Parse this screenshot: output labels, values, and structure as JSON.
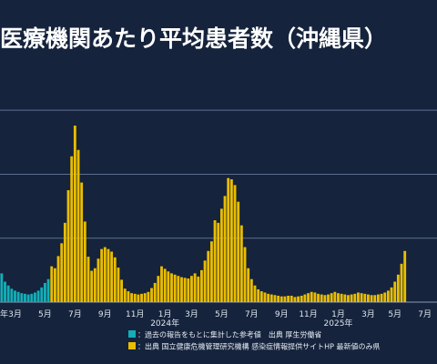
{
  "title": "医療機関あたり平均患者数（沖縄県）",
  "colors": {
    "background": "#15233c",
    "reference_series": "#13aeb8",
    "official_series": "#e9bd00",
    "grid": "#5d6f90"
  },
  "chart_data": {
    "type": "bar",
    "title": "医療機関あたり平均患者数（沖縄県）",
    "xlabel": "",
    "ylabel": "",
    "grid": true,
    "legend_position": "bottom",
    "ylim": [
      0,
      36
    ],
    "yticks": [
      10,
      20,
      30
    ],
    "unit": "weekly",
    "x_tick_labels": [
      {
        "label": "年",
        "index": 0
      },
      {
        "label": "3月",
        "index": 4
      },
      {
        "label": "5月",
        "index": 13
      },
      {
        "label": "7月",
        "index": 22
      },
      {
        "label": "9月",
        "index": 31
      },
      {
        "label": "11月",
        "index": 40
      },
      {
        "label": "1月",
        "index": 49
      },
      {
        "label": "3月",
        "index": 57
      },
      {
        "label": "5月",
        "index": 66
      },
      {
        "label": "7月",
        "index": 75
      },
      {
        "label": "9月",
        "index": 84
      },
      {
        "label": "11月",
        "index": 92
      },
      {
        "label": "1月",
        "index": 101
      },
      {
        "label": "3月",
        "index": 110
      },
      {
        "label": "5月",
        "index": 118
      },
      {
        "label": "7月",
        "index": 127
      }
    ],
    "year_labels": [
      {
        "label": "2024年",
        "index": 49
      },
      {
        "label": "2025年",
        "index": 101
      }
    ],
    "series": [
      {
        "name": "：過去の報告をもとに集計した参考値　出典 厚生労働省",
        "color": "#13aeb8",
        "start": 0,
        "values": [
          4.5,
          3.2,
          2.6,
          2.1,
          1.8,
          1.6,
          1.4,
          1.3,
          1.2,
          1.3,
          1.5,
          1.8,
          2.3,
          3.0,
          3.6
        ]
      },
      {
        "name": "：出典 国立健康危機管理研究機構 感染症情報提供サイトHP 最新値のみ県",
        "color": "#e9bd00",
        "start": 15,
        "values": [
          5.6,
          5.3,
          7.2,
          9.2,
          12.4,
          17.5,
          22.8,
          27.6,
          23.8,
          18.7,
          12.6,
          7.1,
          4.9,
          5.3,
          6.8,
          8.3,
          8.6,
          8.3,
          7.9,
          7.0,
          5.4,
          3.5,
          2.1,
          1.7,
          1.4,
          1.3,
          1.2,
          1.3,
          1.4,
          1.6,
          2.2,
          3.0,
          4.1,
          5.6,
          5.2,
          4.8,
          4.5,
          4.3,
          4.1,
          3.9,
          3.8,
          3.7,
          4.1,
          4.5,
          4.0,
          5.0,
          6.5,
          8.0,
          9.5,
          12.8,
          12.4,
          14.6,
          16.6,
          19.4,
          19.2,
          18.3,
          15.7,
          12.0,
          8.6,
          5.3,
          3.6,
          2.6,
          2.0,
          1.7,
          1.5,
          1.3,
          1.2,
          1.1,
          1.0,
          0.9,
          0.9,
          1.0,
          1.0,
          0.8,
          0.9,
          1.0,
          1.2,
          1.4,
          1.6,
          1.5,
          1.3,
          1.2,
          1.1,
          1.2,
          1.4,
          1.6,
          1.4,
          1.3,
          1.2,
          1.1,
          1.2,
          1.3,
          1.5,
          1.4,
          1.3,
          1.2,
          1.1,
          1.1,
          1.2,
          1.3,
          1.5,
          1.8,
          2.3,
          3.2,
          4.3,
          6.0,
          8.0
        ]
      }
    ]
  }
}
